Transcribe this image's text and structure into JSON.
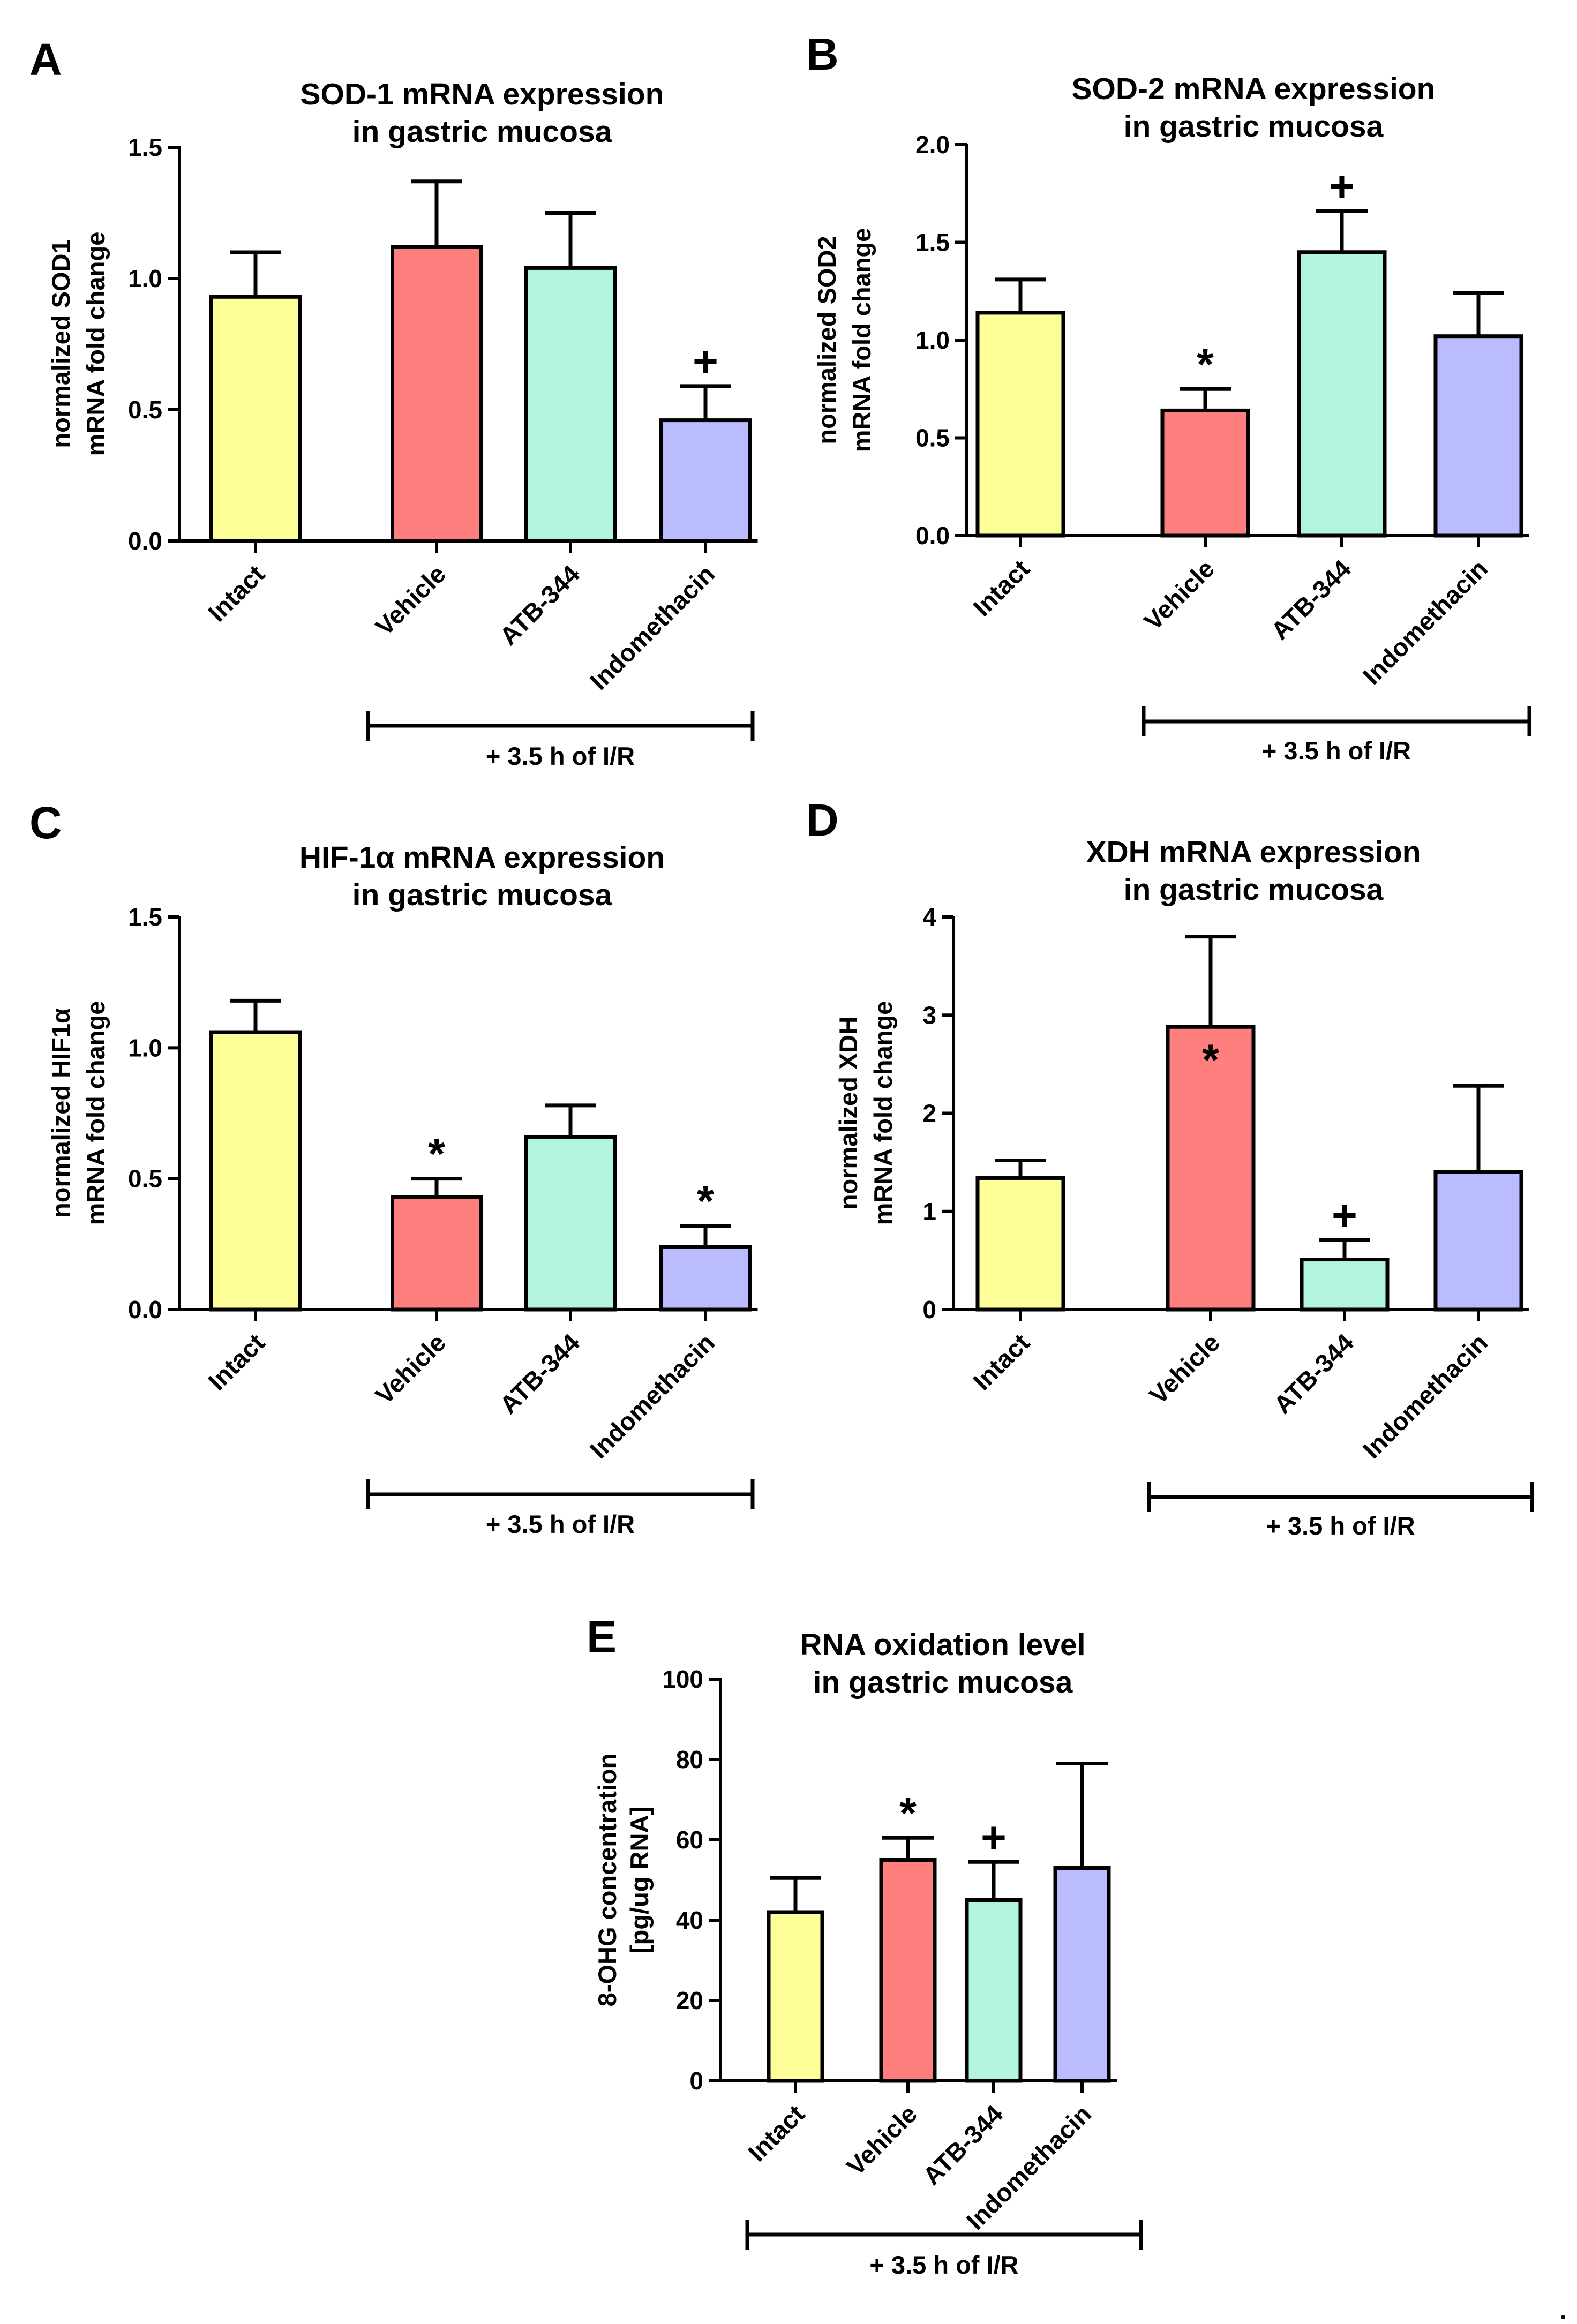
{
  "figure_end_mark": ".",
  "chart_data": [
    {
      "panel": "A",
      "type": "bar",
      "title": [
        "SOD-1 mRNA expression",
        "in gastric mucosa"
      ],
      "ylabel": [
        "normalized SOD1",
        "mRNA fold change"
      ],
      "categories": [
        "Intact",
        "Vehicle",
        "ATB-344",
        "Indomethacin"
      ],
      "values": [
        0.93,
        1.12,
        1.04,
        0.46
      ],
      "errors": [
        0.17,
        0.25,
        0.21,
        0.13
      ],
      "colors": [
        "#ffff99",
        "#ff7f7f",
        "#b3f5dc",
        "#bbbbff"
      ],
      "markers": [
        "",
        "",
        "",
        "+"
      ],
      "ylim": [
        0,
        1.5
      ],
      "yticks": [
        0.0,
        0.5,
        1.0,
        1.5
      ],
      "ytick_labels": [
        "0.0",
        "0.5",
        "1.0",
        "1.5"
      ],
      "group_bracket": {
        "label": "+ 3.5 h of I/R",
        "from": 1,
        "to": 3
      }
    },
    {
      "panel": "B",
      "type": "bar",
      "title": [
        "SOD-2 mRNA expression",
        "in gastric mucosa"
      ],
      "ylabel": [
        "normalized SOD2",
        "mRNA fold change"
      ],
      "categories": [
        "Intact",
        "Vehicle",
        "ATB-344",
        "Indomethacin"
      ],
      "values": [
        1.14,
        0.64,
        1.45,
        1.02
      ],
      "errors": [
        0.17,
        0.11,
        0.21,
        0.22
      ],
      "colors": [
        "#ffff99",
        "#ff7f7f",
        "#b3f5dc",
        "#bbbbff"
      ],
      "markers": [
        "",
        "*",
        "+",
        ""
      ],
      "ylim": [
        0,
        2.0
      ],
      "yticks": [
        0.0,
        0.5,
        1.0,
        1.5,
        2.0
      ],
      "ytick_labels": [
        "0.0",
        "0.5",
        "1.0",
        "1.5",
        "2.0"
      ],
      "group_bracket": {
        "label": "+ 3.5 h of I/R",
        "from": 1,
        "to": 3
      }
    },
    {
      "panel": "C",
      "type": "bar",
      "title": [
        "HIF-1α mRNA expression",
        "in gastric mucosa"
      ],
      "ylabel": [
        "normalized HIF1α",
        "mRNA fold change"
      ],
      "categories": [
        "Intact",
        "Vehicle",
        "ATB-344",
        "Indomethacin"
      ],
      "values": [
        1.06,
        0.43,
        0.66,
        0.24
      ],
      "errors": [
        0.12,
        0.07,
        0.12,
        0.08
      ],
      "colors": [
        "#ffff99",
        "#ff7f7f",
        "#b3f5dc",
        "#bbbbff"
      ],
      "markers": [
        "",
        "*",
        "",
        "*"
      ],
      "ylim": [
        0,
        1.5
      ],
      "yticks": [
        0.0,
        0.5,
        1.0,
        1.5
      ],
      "ytick_labels": [
        "0.0",
        "0.5",
        "1.0",
        "1.5"
      ],
      "group_bracket": {
        "label": "+ 3.5 h of I/R",
        "from": 1,
        "to": 3
      }
    },
    {
      "panel": "D",
      "type": "bar",
      "title": [
        "XDH mRNA expression",
        "in gastric mucosa"
      ],
      "ylabel": [
        "normalized XDH",
        "mRNA fold change"
      ],
      "categories": [
        "Intact",
        "Vehicle",
        "ATB-344",
        "Indomethacin"
      ],
      "values": [
        1.34,
        2.88,
        0.51,
        1.4
      ],
      "errors": [
        0.18,
        0.92,
        0.2,
        0.88
      ],
      "colors": [
        "#ffff99",
        "#ff7f7f",
        "#b3f5dc",
        "#bbbbff"
      ],
      "markers": [
        "",
        "*",
        "+",
        ""
      ],
      "marker_inside": [
        false,
        true,
        false,
        false
      ],
      "ylim": [
        0,
        4
      ],
      "yticks": [
        0,
        1,
        2,
        3,
        4
      ],
      "ytick_labels": [
        "0",
        "1",
        "2",
        "3",
        "4"
      ],
      "group_bracket": {
        "label": "+ 3.5 h of I/R",
        "from": 1,
        "to": 3
      }
    },
    {
      "panel": "E",
      "type": "bar",
      "title": [
        "RNA oxidation level",
        "in gastric mucosa"
      ],
      "ylabel": [
        "8-OHG concentration",
        "[pg/ug RNA]"
      ],
      "categories": [
        "Intact",
        "Vehicle",
        "ATB-344",
        "Indomethacin"
      ],
      "values": [
        42,
        55,
        45,
        53
      ],
      "errors": [
        8.5,
        5.5,
        9.5,
        26
      ],
      "colors": [
        "#ffff99",
        "#ff7f7f",
        "#b3f5dc",
        "#bbbbff"
      ],
      "markers": [
        "",
        "*",
        "+",
        ""
      ],
      "ylim": [
        0,
        100
      ],
      "yticks": [
        0,
        20,
        40,
        60,
        80,
        100
      ],
      "ytick_labels": [
        "0",
        "20",
        "40",
        "60",
        "80",
        "100"
      ],
      "group_bracket": {
        "label": "+ 3.5 h of I/R",
        "from": 0,
        "to": 3
      }
    }
  ]
}
